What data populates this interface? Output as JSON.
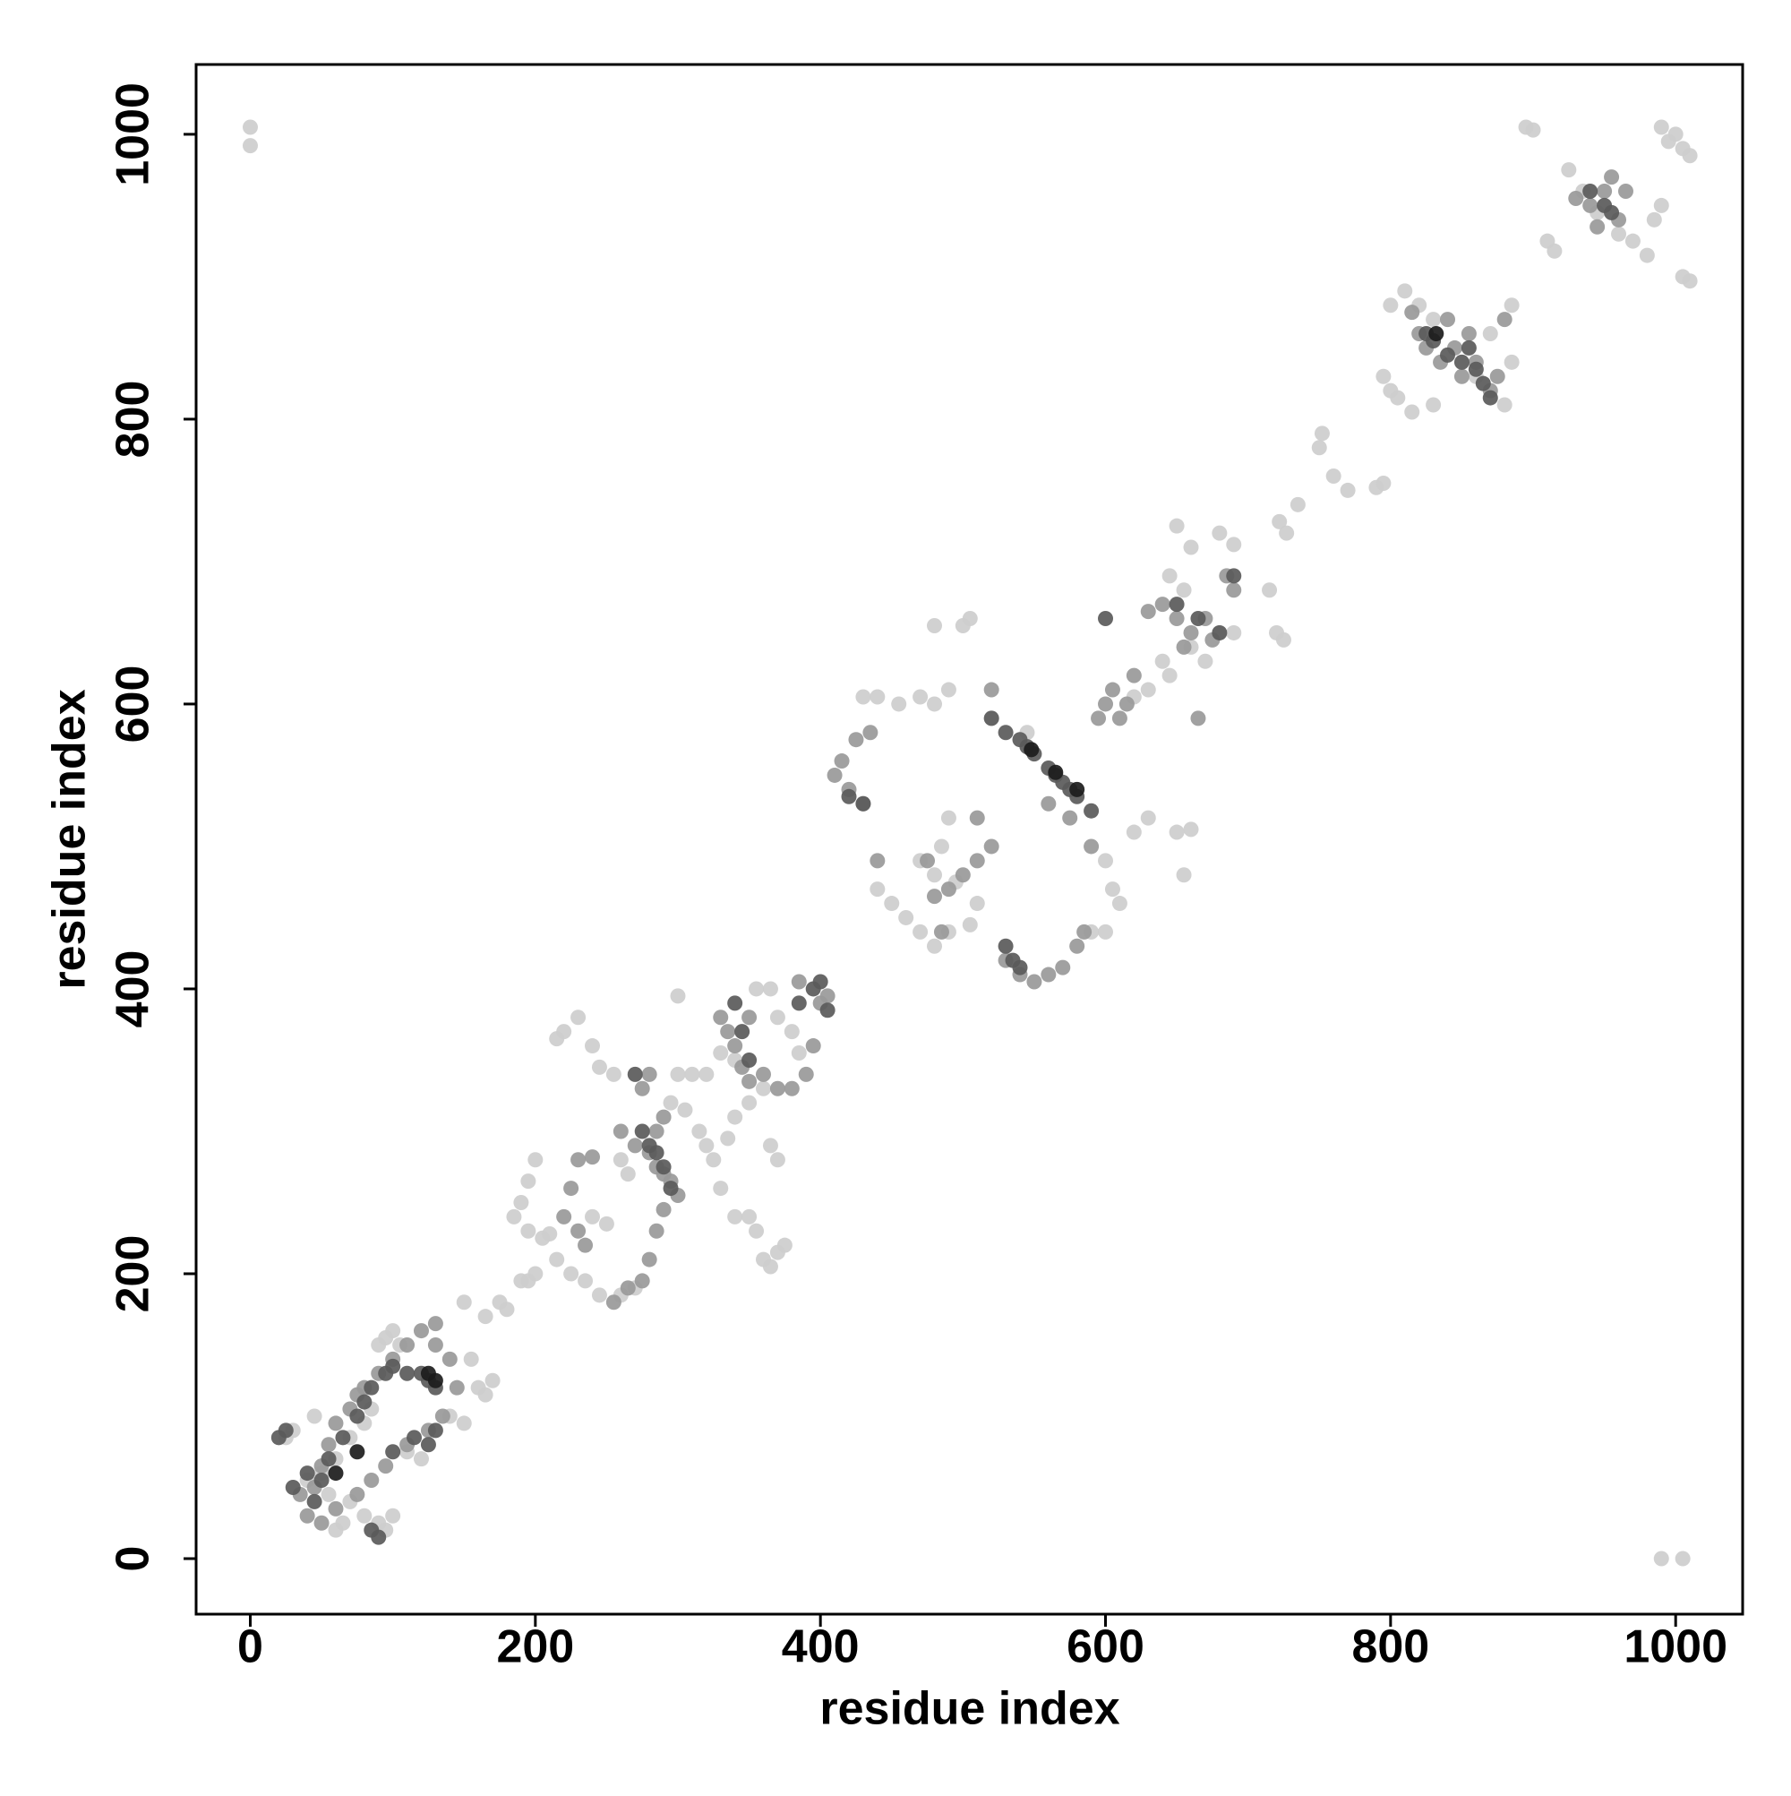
{
  "chart_data": {
    "type": "scatter",
    "x_label": "residue index",
    "y_label": "residue index",
    "xlim": [
      -38,
      1047
    ],
    "ylim": [
      -39,
      1049
    ],
    "xticks": [
      0,
      200,
      400,
      600,
      800,
      1000
    ],
    "yticks": [
      0,
      200,
      400,
      600,
      800,
      1000
    ],
    "grid": false,
    "series": [
      {
        "color": "#cdcdcd",
        "x": [
          0,
          0,
          990,
          1005,
          895,
          900,
          990,
          1000,
          1005,
          1010,
          995,
          1005,
          1010,
          910,
          915,
          925,
          935,
          945,
          960,
          970,
          980,
          985,
          990,
          800,
          810,
          820,
          830,
          795,
          805,
          815,
          830,
          860,
          880,
          885,
          870,
          885,
          800,
          770,
          760,
          750,
          752,
          790,
          795,
          735,
          722,
          727,
          715,
          720,
          725,
          650,
          660,
          680,
          690,
          645,
          655,
          640,
          645,
          660,
          680,
          690,
          670,
          620,
          630,
          480,
          500,
          505,
          490,
          480,
          470,
          440,
          430,
          455,
          520,
          545,
          440,
          450,
          460,
          470,
          480,
          490,
          505,
          510,
          495,
          480,
          470,
          485,
          490,
          605,
          600,
          610,
          650,
          660,
          655,
          600,
          590,
          620,
          630,
          355,
          365,
          370,
          380,
          385,
          340,
          330,
          320,
          310,
          300,
          295,
          305,
          315,
          320,
          325,
          335,
          340,
          350,
          360,
          300,
          370,
          365,
          215,
          220,
          230,
          240,
          245,
          255,
          260,
          265,
          200,
          195,
          190,
          185,
          195,
          205,
          210,
          215,
          225,
          235,
          245,
          260,
          270,
          240,
          250,
          330,
          340,
          350,
          355,
          360,
          365,
          370,
          375,
          150,
          165,
          175,
          180,
          190,
          195,
          200,
          155,
          160,
          165,
          170,
          150,
          140,
          110,
          120,
          100,
          105,
          95,
          90,
          85,
          80,
          70,
          60,
          50,
          40,
          30,
          25,
          45,
          55,
          70,
          80,
          90,
          100,
          95,
          65,
          60
        ],
        "y": [
          1005,
          992,
          0,
          0,
          1005,
          1003,
          1005,
          1000,
          990,
          985,
          995,
          900,
          897,
          925,
          918,
          975,
          960,
          945,
          930,
          925,
          915,
          940,
          950,
          880,
          890,
          880,
          870,
          830,
          815,
          805,
          810,
          830,
          810,
          840,
          860,
          880,
          820,
          750,
          760,
          780,
          790,
          752,
          755,
          740,
          728,
          720,
          680,
          650,
          645,
          725,
          710,
          720,
          712,
          690,
          680,
          630,
          620,
          640,
          650,
          650,
          630,
          605,
          610,
          655,
          655,
          660,
          610,
          600,
          605,
          605,
          605,
          600,
          590,
          580,
          470,
          460,
          450,
          440,
          430,
          440,
          445,
          460,
          475,
          480,
          490,
          500,
          520,
          470,
          490,
          460,
          510,
          512,
          480,
          440,
          440,
          510,
          520,
          400,
          400,
          380,
          370,
          355,
          350,
          355,
          340,
          340,
          340,
          320,
          315,
          300,
          290,
          280,
          295,
          310,
          320,
          330,
          395,
          280,
          290,
          365,
          370,
          380,
          360,
          345,
          340,
          280,
          270,
          280,
          265,
          250,
          240,
          230,
          225,
          228,
          210,
          200,
          195,
          185,
          185,
          190,
          240,
          235,
          260,
          240,
          240,
          230,
          210,
          205,
          215,
          220,
          180,
          170,
          180,
          175,
          195,
          195,
          200,
          140,
          120,
          115,
          125,
          95,
          100,
          75,
          70,
          160,
          150,
          155,
          150,
          105,
          95,
          85,
          70,
          60,
          55,
          90,
          85,
          100,
          45,
          40,
          30,
          25,
          30,
          20,
          25,
          20
        ]
      },
      {
        "color": "#999999",
        "x": [
          940,
          950,
          955,
          960,
          945,
          930,
          965,
          820,
          825,
          835,
          845,
          855,
          850,
          860,
          870,
          875,
          880,
          815,
          840,
          650,
          660,
          670,
          675,
          685,
          690,
          665,
          640,
          655,
          630,
          620,
          600,
          610,
          595,
          605,
          615,
          590,
          575,
          560,
          520,
          510,
          430,
          420,
          410,
          415,
          425,
          435,
          440,
          480,
          490,
          500,
          510,
          520,
          485,
          475,
          530,
          540,
          550,
          560,
          570,
          580,
          585,
          330,
          335,
          340,
          345,
          350,
          360,
          370,
          380,
          390,
          395,
          400,
          405,
          385,
          350,
          300,
          295,
          290,
          285,
          280,
          270,
          260,
          285,
          290,
          280,
          275,
          285,
          280,
          275,
          265,
          255,
          290,
          230,
          240,
          225,
          220,
          230,
          235,
          100,
          110,
          120,
          130,
          90,
          80,
          75,
          70,
          60,
          55,
          50,
          45,
          35,
          40,
          50,
          60,
          75,
          85,
          95,
          110,
          125,
          135,
          145,
          140,
          130
        ],
        "y": [
          950,
          960,
          970,
          940,
          935,
          955,
          960,
          860,
          850,
          840,
          850,
          860,
          830,
          840,
          820,
          830,
          870,
          875,
          870,
          660,
          650,
          660,
          645,
          690,
          680,
          590,
          670,
          640,
          665,
          620,
          600,
          590,
          590,
          610,
          600,
          500,
          520,
          530,
          610,
          520,
          530,
          540,
          550,
          560,
          575,
          580,
          490,
          465,
          470,
          480,
          490,
          500,
          440,
          490,
          420,
          410,
          405,
          410,
          415,
          430,
          440,
          380,
          370,
          360,
          345,
          335,
          340,
          330,
          330,
          340,
          360,
          390,
          395,
          405,
          380,
          255,
          265,
          270,
          275,
          285,
          290,
          300,
          300,
          310,
          340,
          330,
          230,
          210,
          195,
          190,
          180,
          245,
          280,
          282,
          260,
          240,
          230,
          220,
          140,
          150,
          160,
          165,
          130,
          120,
          115,
          105,
          95,
          80,
          65,
          50,
          45,
          30,
          25,
          35,
          45,
          55,
          65,
          80,
          90,
          100,
          120,
          140,
          150
        ]
      },
      {
        "color": "#5a5a5a",
        "x": [
          950,
          940,
          955,
          825,
          830,
          840,
          850,
          855,
          865,
          870,
          860,
          530,
          540,
          550,
          560,
          570,
          580,
          590,
          545,
          565,
          575,
          520,
          600,
          650,
          665,
          680,
          690,
          530,
          535,
          540,
          420,
          430,
          395,
          400,
          405,
          385,
          340,
          345,
          350,
          280,
          285,
          290,
          295,
          275,
          270,
          120,
          125,
          130,
          110,
          100,
          95,
          85,
          80,
          75,
          65,
          55,
          50,
          45,
          40,
          30,
          20,
          25,
          85,
          90,
          100,
          115,
          125,
          130
        ],
        "y": [
          950,
          960,
          945,
          860,
          855,
          845,
          840,
          850,
          825,
          815,
          835,
          580,
          575,
          565,
          555,
          545,
          535,
          525,
          570,
          550,
          540,
          590,
          660,
          670,
          660,
          650,
          690,
          430,
          420,
          415,
          535,
          530,
          400,
          405,
          385,
          390,
          390,
          370,
          350,
          290,
          285,
          275,
          260,
          300,
          340,
          130,
          125,
          120,
          130,
          135,
          130,
          120,
          110,
          100,
          85,
          70,
          55,
          40,
          60,
          50,
          85,
          90,
          20,
          15,
          75,
          85,
          80,
          90
        ]
      },
      {
        "color": "#1c1c1c",
        "x": [
          125,
          130,
          548,
          565,
          580,
          832,
          75,
          60
        ],
        "y": [
          130,
          125,
          568,
          552,
          540,
          860,
          75,
          60
        ]
      }
    ]
  }
}
